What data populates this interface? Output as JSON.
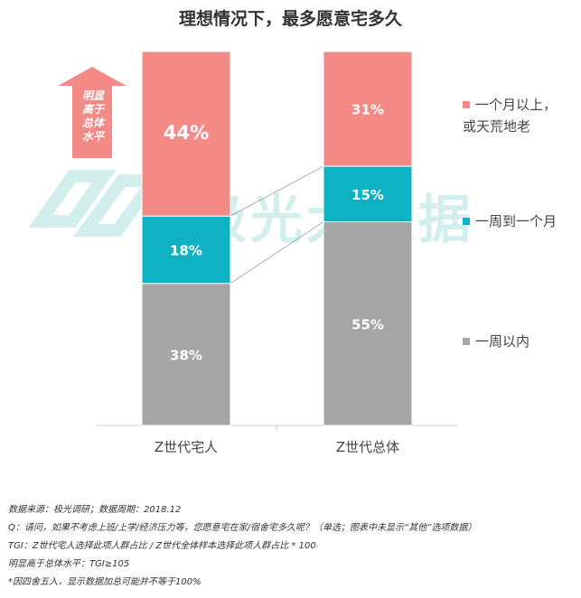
{
  "title": "理想情况下，最多愿意宅多久",
  "watermark": "极光大数据",
  "highlight_note": "明显高于总体水平",
  "highlight_lines": [
    "明显",
    "高于",
    "总体",
    "水平"
  ],
  "colors": {
    "over_month": "#f48a86",
    "one_week_to_month": "#0fb2c3",
    "within_week": "#a5a5a5",
    "arrow": "#f48a86",
    "watermark": "#c9ece9"
  },
  "chart_data": {
    "type": "bar",
    "stacked": true,
    "percent": true,
    "title": "理想情况下，最多愿意宅多久",
    "categories": [
      "Z世代宅人",
      "Z世代总体"
    ],
    "series": [
      {
        "name": "一周以内",
        "values": [
          38,
          55
        ],
        "labels": [
          "38%",
          "55%"
        ],
        "color": "#a5a5a5"
      },
      {
        "name": "一周到一个月",
        "values": [
          18,
          15
        ],
        "labels": [
          "18%",
          "15%"
        ],
        "color": "#0fb2c3"
      },
      {
        "name": "一个月以上，或天荒地老",
        "values": [
          44,
          31
        ],
        "labels": [
          "44%",
          "31%"
        ],
        "color": "#f48a86"
      }
    ],
    "ylim": [
      0,
      100
    ],
    "grid": false,
    "legend": "right"
  },
  "legend": [
    {
      "label": "一个月以上，\n或天荒地老",
      "color": "#f48a86"
    },
    {
      "label": "一周到一个月",
      "color": "#0fb2c3"
    },
    {
      "label": "一周以内",
      "color": "#a5a5a5"
    }
  ],
  "footnotes": [
    "数据来源：极光调研；数据周期：2018.12",
    "Q：请问，如果不考虑上班/上学/经济压力等，您愿意宅在家/宿舍宅多久呢？（单选；图表中未显示“其他”选项数据）",
    "TGI：Z世代宅人选择此项人群占比 / Z世代全体样本选择此项人群占比 * 100",
    "明显高于总体水平：TGI≥105",
    "*因四舍五入，显示数据加总可能并不等于100%"
  ]
}
